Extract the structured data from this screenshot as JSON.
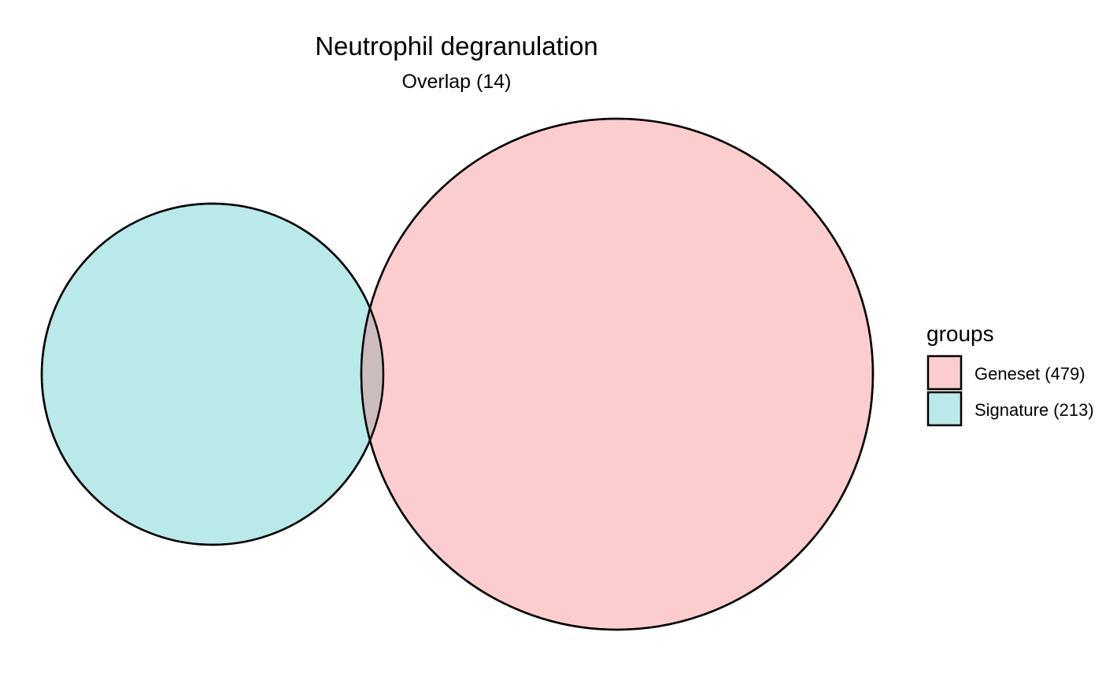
{
  "title": "Neutrophil degranulation",
  "subtitle": "Overlap (14)",
  "legend": {
    "title": "groups",
    "items": [
      {
        "label": "Geneset (479)",
        "color": "#fccdce"
      },
      {
        "label": "Signature (213)",
        "color": "#b9e9e8"
      }
    ]
  },
  "sets": [
    {
      "name": "Geneset",
      "size": 479,
      "color": "#fccdce"
    },
    {
      "name": "Signature",
      "size": 213,
      "color": "#b9e9e8"
    }
  ],
  "overlap": {
    "size": 14,
    "color": "#cbbdbe"
  }
}
